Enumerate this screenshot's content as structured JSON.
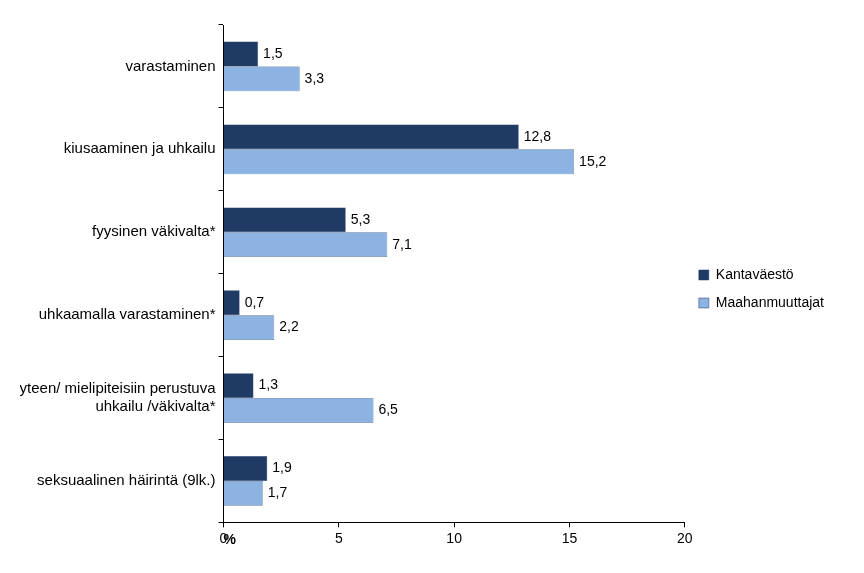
{
  "chart_data": {
    "type": "bar",
    "orientation": "horizontal",
    "categories": [
      "varastaminen",
      "kiusaaminen ja uhkailu",
      "fyysinen väkivalta*",
      "uhkaamalla varastaminen*",
      [
        "etnisyyteen/ mielipiteisiin perustuva",
        "uhkailu /väkivalta*"
      ],
      "seksuaalinen häirintä (9lk.)"
    ],
    "series": [
      {
        "name": "Kantaväestö",
        "color": "#1f3b64",
        "values": [
          1.5,
          12.8,
          5.3,
          0.7,
          1.3,
          1.9
        ],
        "value_labels": [
          "1,5",
          "12,8",
          "5,3",
          "0,7",
          "1,3",
          "1,9"
        ]
      },
      {
        "name": "Maahanmuuttajat",
        "color": "#8db3e2",
        "values": [
          3.3,
          15.2,
          7.1,
          2.2,
          6.5,
          1.7
        ],
        "value_labels": [
          "3,3",
          "15,2",
          "7,1",
          "2,2",
          "6,5",
          "1,7"
        ]
      }
    ],
    "x_label": "%",
    "xlim": [
      0,
      20
    ],
    "xticks": [
      0,
      5,
      10,
      15,
      20
    ],
    "grid": false,
    "legend": "right",
    "data_labels": true
  }
}
